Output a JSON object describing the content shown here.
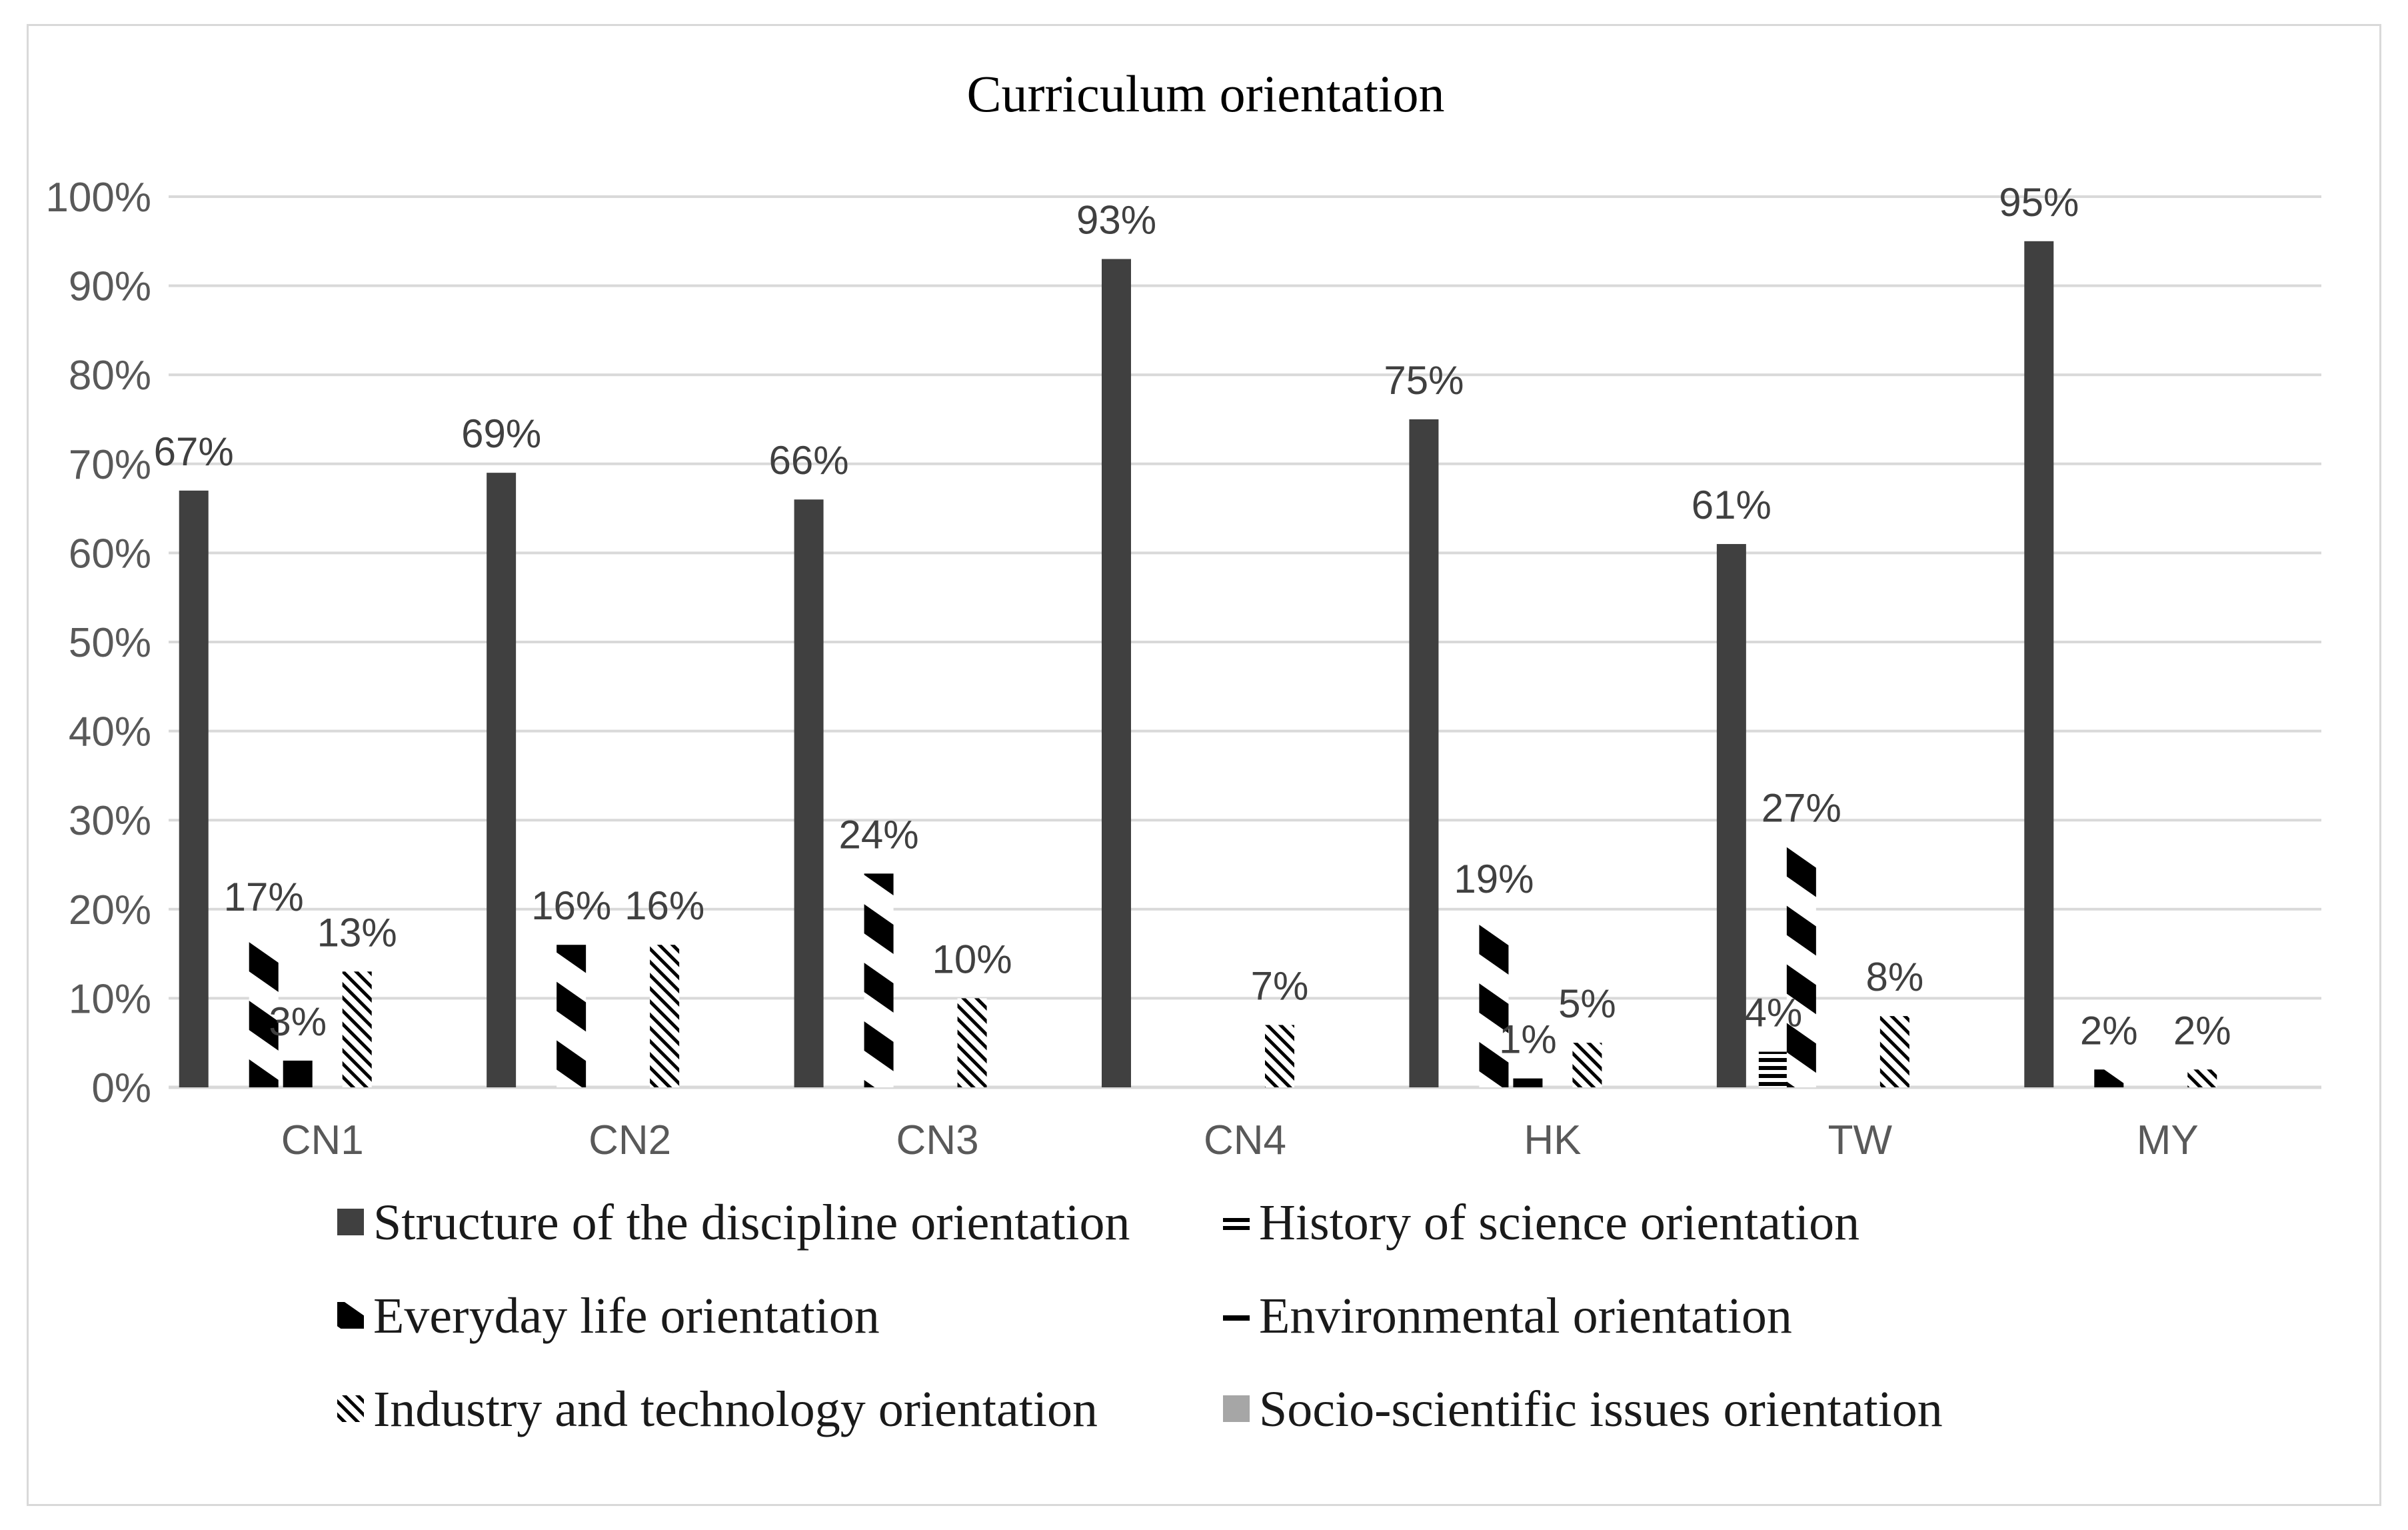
{
  "chart_data": {
    "type": "bar",
    "title": "Curriculum orientation",
    "xlabel": "",
    "ylabel": "",
    "ylim": [
      0,
      100
    ],
    "yticks": [
      "0%",
      "10%",
      "20%",
      "30%",
      "40%",
      "50%",
      "60%",
      "70%",
      "80%",
      "90%",
      "100%"
    ],
    "categories": [
      "CN1",
      "CN2",
      "CN3",
      "CN4",
      "HK",
      "TW",
      "MY"
    ],
    "series": [
      {
        "name": "Structure of the discipline orientation",
        "pattern": "solid-dark",
        "values": [
          67,
          69,
          66,
          93,
          75,
          61,
          95
        ],
        "labels": [
          "67%",
          "69%",
          "66%",
          "93%",
          "75%",
          "61%",
          "95%"
        ]
      },
      {
        "name": "History of science orientation",
        "pattern": "horizontal-stripes",
        "values": [
          0,
          0,
          0,
          0,
          0,
          4,
          0
        ],
        "labels": [
          "",
          "",
          "",
          "",
          "",
          "4%",
          ""
        ]
      },
      {
        "name": "Everyday life orientation",
        "pattern": "wide-diagonal-dark",
        "values": [
          17,
          16,
          24,
          0,
          19,
          27,
          2
        ],
        "labels": [
          "17%",
          "16%",
          "24%",
          "",
          "19%",
          "27%",
          "2%"
        ]
      },
      {
        "name": "Environmental orientation",
        "pattern": "horizontal-line",
        "values": [
          3,
          0,
          0,
          0,
          1,
          0,
          0
        ],
        "labels": [
          "3%",
          "",
          "",
          "",
          "1%",
          "",
          ""
        ]
      },
      {
        "name": "Industry and technology orientation",
        "pattern": "narrow-diagonal",
        "values": [
          13,
          16,
          10,
          7,
          5,
          8,
          2
        ],
        "labels": [
          "13%",
          "16%",
          "10%",
          "7%",
          "5%",
          "8%",
          "2%"
        ]
      },
      {
        "name": "Socio-scientific issues orientation",
        "pattern": "solid-gray",
        "values": [
          0,
          0,
          0,
          0,
          0,
          0,
          0
        ],
        "labels": [
          "",
          "",
          "",
          "",
          "",
          "",
          ""
        ]
      }
    ],
    "grid": true,
    "legend_position": "bottom",
    "colors": {
      "dark": "#404040",
      "black": "#000000",
      "gray": "#a6a6a6",
      "grid": "#d9d9d9",
      "text": "#595959"
    }
  }
}
